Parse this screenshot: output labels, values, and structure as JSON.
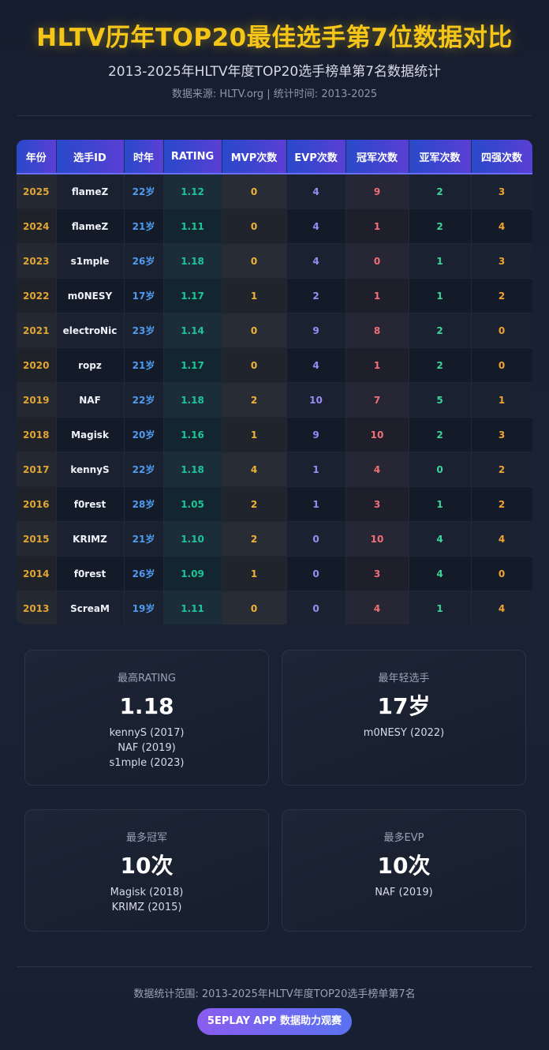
{
  "header": {
    "title": "HLTV历年TOP20最佳选手第7位数据对比",
    "subtitle": "2013-2025年HLTV年度TOP20选手榜单第7名数据统计",
    "source": "数据来源: HLTV.org | 统计时间: 2013-2025"
  },
  "table": {
    "columns": [
      "年份",
      "选手ID",
      "时年",
      "RATING",
      "MVP次数",
      "EVP次数",
      "冠军次数",
      "亚军次数",
      "四强次数"
    ],
    "rows": [
      [
        "2025",
        "flameZ",
        "22岁",
        "1.12",
        "0",
        "4",
        "9",
        "2",
        "3"
      ],
      [
        "2024",
        "flameZ",
        "21岁",
        "1.11",
        "0",
        "4",
        "1",
        "2",
        "4"
      ],
      [
        "2023",
        "s1mple",
        "26岁",
        "1.18",
        "0",
        "4",
        "0",
        "1",
        "3"
      ],
      [
        "2022",
        "m0NESY",
        "17岁",
        "1.17",
        "1",
        "2",
        "1",
        "1",
        "2"
      ],
      [
        "2021",
        "electroNic",
        "23岁",
        "1.14",
        "0",
        "9",
        "8",
        "2",
        "0"
      ],
      [
        "2020",
        "ropz",
        "21岁",
        "1.17",
        "0",
        "4",
        "1",
        "2",
        "0"
      ],
      [
        "2019",
        "NAF",
        "22岁",
        "1.18",
        "2",
        "10",
        "7",
        "5",
        "1"
      ],
      [
        "2018",
        "Magisk",
        "20岁",
        "1.16",
        "1",
        "9",
        "10",
        "2",
        "3"
      ],
      [
        "2017",
        "kennyS",
        "22岁",
        "1.18",
        "4",
        "1",
        "4",
        "0",
        "2"
      ],
      [
        "2016",
        "f0rest",
        "28岁",
        "1.05",
        "2",
        "1",
        "3",
        "1",
        "2"
      ],
      [
        "2015",
        "KRIMZ",
        "21岁",
        "1.10",
        "2",
        "0",
        "10",
        "4",
        "4"
      ],
      [
        "2014",
        "f0rest",
        "26岁",
        "1.09",
        "1",
        "0",
        "3",
        "4",
        "0"
      ],
      [
        "2013",
        "ScreaM",
        "19岁",
        "1.11",
        "0",
        "0",
        "4",
        "1",
        "4"
      ]
    ]
  },
  "stats": [
    {
      "label": "最高RATING",
      "value": "1.18",
      "lines": [
        "kennyS (2017)",
        "NAF (2019)",
        "s1mple (2023)"
      ]
    },
    {
      "label": "最年轻选手",
      "value": "17岁",
      "lines": [
        "m0NESY (2022)"
      ]
    },
    {
      "label": "最多冠军",
      "value": "10次",
      "lines": [
        "Magisk (2018)",
        "KRIMZ (2015)"
      ]
    },
    {
      "label": "最多EVP",
      "value": "10次",
      "lines": [
        "NAF (2019)"
      ]
    }
  ],
  "footer": {
    "range_text": "数据统计范围: 2013-2025年HLTV年度TOP20选手榜单第7名",
    "app_label": "5EPLAY APP 数据助力观赛"
  },
  "colors": {
    "title": "#f5c518",
    "header_gradient_start": "#2a49c9",
    "header_gradient_end": "#5b3fd4",
    "rating": "#1ec49a",
    "champion": "#f07078",
    "button_gradient_start": "#8a5cf0",
    "button_gradient_end": "#5a72f0"
  }
}
